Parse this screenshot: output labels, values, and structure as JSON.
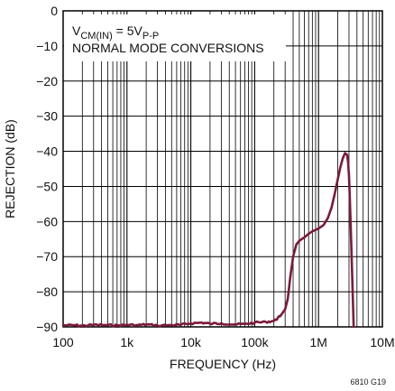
{
  "chart_data": {
    "type": "line",
    "xlabel": "FREQUENCY (Hz)",
    "ylabel": "REJECTION (dB)",
    "x_scale": "log",
    "xlim": [
      100,
      10000000
    ],
    "ylim": [
      -90,
      0
    ],
    "grid": true,
    "x_tick_values": [
      100,
      1000,
      10000,
      100000,
      1000000,
      10000000
    ],
    "x_tick_labels": [
      "100",
      "1k",
      "10k",
      "100k",
      "1M",
      "10M"
    ],
    "y_tick_values": [
      0,
      -10,
      -20,
      -30,
      -40,
      -50,
      -60,
      -70,
      -80,
      -90
    ],
    "y_tick_labels": [
      "0",
      "−10",
      "−20",
      "−30",
      "−40",
      "−50",
      "−60",
      "−70",
      "−80",
      "−90"
    ],
    "annotation": {
      "line1_main": "V",
      "line1_sub1": "CM(IN)",
      "line1_mid": " = 5V",
      "line1_sub2": "P-P",
      "line2": "NORMAL MODE CONVERSIONS"
    },
    "series": [
      {
        "color": "#7b1a3a",
        "x": [
          100,
          150,
          200,
          300,
          500,
          700,
          1000,
          1500,
          2000,
          3000,
          5000,
          7000,
          10000,
          15000,
          20000,
          30000,
          50000,
          70000,
          100000,
          150000,
          200000,
          250000,
          300000,
          330000,
          360000,
          400000,
          450000,
          500000,
          600000,
          700000,
          800000,
          1000000,
          1200000,
          1400000,
          1600000,
          1800000,
          2000000,
          2200000,
          2400000,
          2600000,
          2800000,
          2900000,
          3000000,
          3100000,
          3200000,
          3300000,
          3400000,
          3500000,
          3550000
        ],
        "y": [
          -89.6,
          -89.5,
          -89.7,
          -89.4,
          -89.5,
          -89.6,
          -89.4,
          -89.5,
          -89.3,
          -89.6,
          -89.5,
          -89.4,
          -89.0,
          -88.8,
          -89.1,
          -89.0,
          -89.3,
          -89.2,
          -88.8,
          -88.6,
          -88.3,
          -87.0,
          -85.0,
          -82.0,
          -76.0,
          -70.0,
          -66.5,
          -65.5,
          -64.5,
          -63.5,
          -62.8,
          -62.0,
          -61.0,
          -59.0,
          -56.0,
          -52.0,
          -48.0,
          -44.5,
          -42.0,
          -40.5,
          -41.0,
          -43.0,
          -47.0,
          -54.0,
          -62.0,
          -70.0,
          -78.0,
          -86.0,
          -90.0
        ]
      }
    ],
    "figure_id": "6810 G19"
  }
}
